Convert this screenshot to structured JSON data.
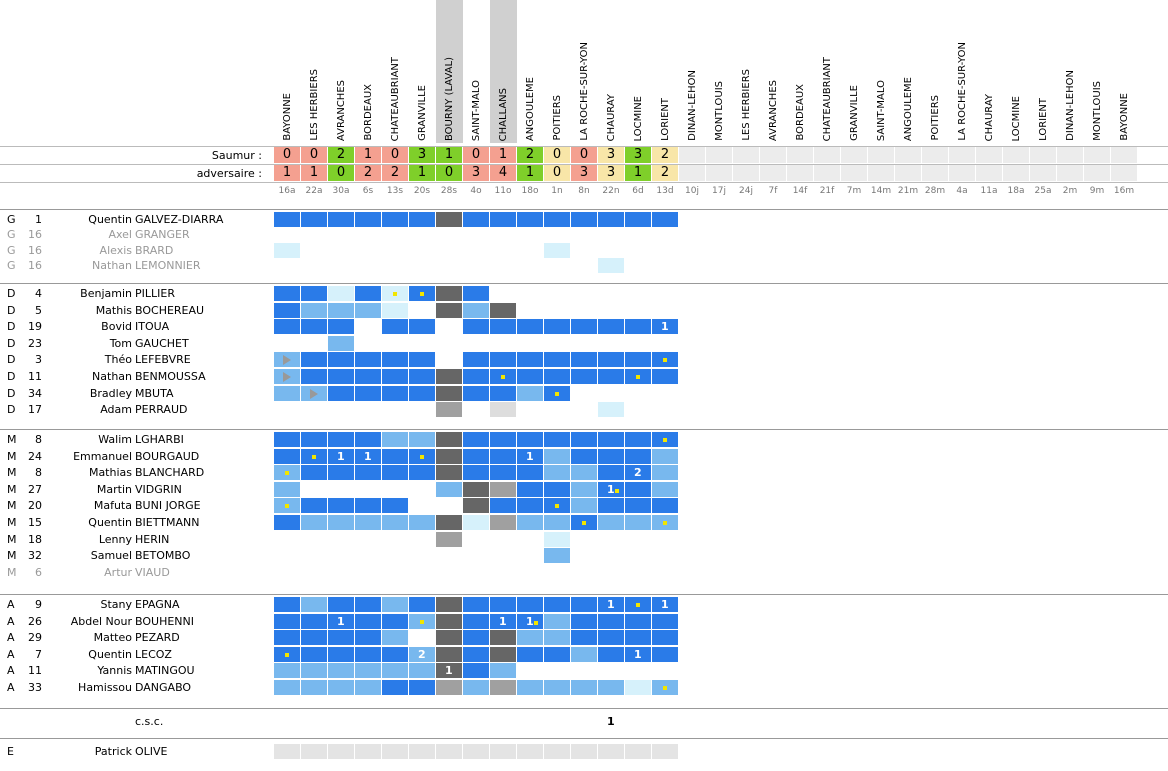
{
  "opponents": [
    "BAYONNE",
    "LES HERBIERS",
    "AVRANCHES",
    "BORDEAUX",
    "CHATEAUBRIANT",
    "GRANVILLE",
    "BOURNY (LAVAL)",
    "SAINT-MALO",
    "CHALLANS",
    "ANGOULEME",
    "POITIERS",
    "LA ROCHE-SUR-YON",
    "CHAURAY",
    "LOCMINE",
    "LORIENT",
    "DINAN-LEHON",
    "MONTLOUIS",
    "LES HERBIERS",
    "AVRANCHES",
    "BORDEAUX",
    "CHATEAUBRIANT",
    "GRANVILLE",
    "SAINT-MALO",
    "ANGOULEME",
    "POITIERS",
    "LA ROCHE-SUR-YON",
    "CHAURAY",
    "LOCMINE",
    "LORIENT",
    "DINAN-LEHON",
    "MONTLOUIS",
    "BAYONNE"
  ],
  "score_labels": {
    "team": "Saumur :",
    "opponent": "adversaire :"
  },
  "team_scores": [
    "0",
    "0",
    "2",
    "1",
    "0",
    "3",
    "1",
    "0",
    "1",
    "2",
    "0",
    "0",
    "3",
    "3",
    "2"
  ],
  "opp_scores": [
    "1",
    "1",
    "0",
    "2",
    "2",
    "1",
    "0",
    "3",
    "4",
    "1",
    "0",
    "3",
    "3",
    "1",
    "2"
  ],
  "dates": [
    "16a",
    "22a",
    "30a",
    "6s",
    "13s",
    "20s",
    "28s",
    "4o",
    "11o",
    "18o",
    "1n",
    "8n",
    "22n",
    "6d",
    "13d",
    "10j",
    "17j",
    "24j",
    "7f",
    "14f",
    "21f",
    "7m",
    "14m",
    "21m",
    "28m",
    "4a",
    "11a",
    "18a",
    "25a",
    "2m",
    "9m",
    "16m"
  ],
  "result_colors": {
    "loss": "#f4a090",
    "win": "#7fcf2a",
    "draw": "#f8e6a8",
    "future": "#ececec"
  },
  "cell_colors": {
    "full": "#2a7be8",
    "partial": "#78b8ee",
    "bench": "#d6f1fb",
    "absent_grey": "#666666",
    "mid_grey": "#a0a0a0",
    "light_grey": "#dddddd"
  },
  "groups": [
    {
      "players": [
        {
          "pos": "G",
          "num": "1",
          "first": "Quentin",
          "last": "GALVEZ-DIARRA",
          "faded": false
        },
        {
          "pos": "G",
          "num": "16",
          "first": "Axel",
          "last": "GRANGER",
          "faded": true
        },
        {
          "pos": "G",
          "num": "16",
          "first": "Alexis",
          "last": "BRARD",
          "faded": true
        },
        {
          "pos": "G",
          "num": "16",
          "first": "Nathan",
          "last": "LEMONNIER",
          "faded": true
        }
      ]
    },
    {
      "players": [
        {
          "pos": "D",
          "num": "4",
          "first": "Benjamin",
          "last": "PILLIER",
          "faded": false
        },
        {
          "pos": "D",
          "num": "5",
          "first": "Mathis",
          "last": "BOCHEREAU",
          "faded": false
        },
        {
          "pos": "D",
          "num": "19",
          "first": "Bovid",
          "last": "ITOUA",
          "faded": false
        },
        {
          "pos": "D",
          "num": "23",
          "first": "Tom",
          "last": "GAUCHET",
          "faded": false
        },
        {
          "pos": "D",
          "num": "3",
          "first": "Théo",
          "last": "LEFEBVRE",
          "faded": false
        },
        {
          "pos": "D",
          "num": "11",
          "first": "Nathan",
          "last": "BENMOUSSA",
          "faded": false
        },
        {
          "pos": "D",
          "num": "34",
          "first": "Bradley",
          "last": "MBUTA",
          "faded": false
        },
        {
          "pos": "D",
          "num": "17",
          "first": "Adam",
          "last": "PERRAUD",
          "faded": false
        }
      ]
    },
    {
      "players": [
        {
          "pos": "M",
          "num": "8",
          "first": "Walim",
          "last": "LGHARBI",
          "faded": false
        },
        {
          "pos": "M",
          "num": "24",
          "first": "Emmanuel",
          "last": "BOURGAUD",
          "faded": false
        },
        {
          "pos": "M",
          "num": "8",
          "first": "Mathias",
          "last": "BLANCHARD",
          "faded": false
        },
        {
          "pos": "M",
          "num": "27",
          "first": "Martin",
          "last": "VIDGRIN",
          "faded": false
        },
        {
          "pos": "M",
          "num": "20",
          "first": "Mafuta",
          "last": "BUNI JORGE",
          "faded": false
        },
        {
          "pos": "M",
          "num": "15",
          "first": "Quentin",
          "last": "BIETTMANN",
          "faded": false
        },
        {
          "pos": "M",
          "num": "18",
          "first": "Lenny",
          "last": "HERIN",
          "faded": false
        },
        {
          "pos": "M",
          "num": "32",
          "first": "Samuel",
          "last": "BETOMBO",
          "faded": false
        },
        {
          "pos": "M",
          "num": "6",
          "first": "Artur",
          "last": "VIAUD",
          "faded": true
        }
      ]
    },
    {
      "players": [
        {
          "pos": "A",
          "num": "9",
          "first": "Stany",
          "last": "EPAGNA",
          "faded": false
        },
        {
          "pos": "A",
          "num": "26",
          "first": "Abdel Nour",
          "last": "BOUHENNI",
          "faded": false
        },
        {
          "pos": "A",
          "num": "29",
          "first": "Matteo",
          "last": "PEZARD",
          "faded": false
        },
        {
          "pos": "A",
          "num": "7",
          "first": "Quentin",
          "last": "LECOZ",
          "faded": false
        },
        {
          "pos": "A",
          "num": "11",
          "first": "Yannis",
          "last": "MATINGOU",
          "faded": false
        },
        {
          "pos": "A",
          "num": "33",
          "first": "Hamissou",
          "last": "DANGABO",
          "faded": false
        }
      ]
    }
  ],
  "csc": {
    "label": "c.s.c.",
    "value": "1"
  },
  "coach": {
    "pos": "E",
    "first": "Patrick",
    "last": "OLIVE"
  }
}
